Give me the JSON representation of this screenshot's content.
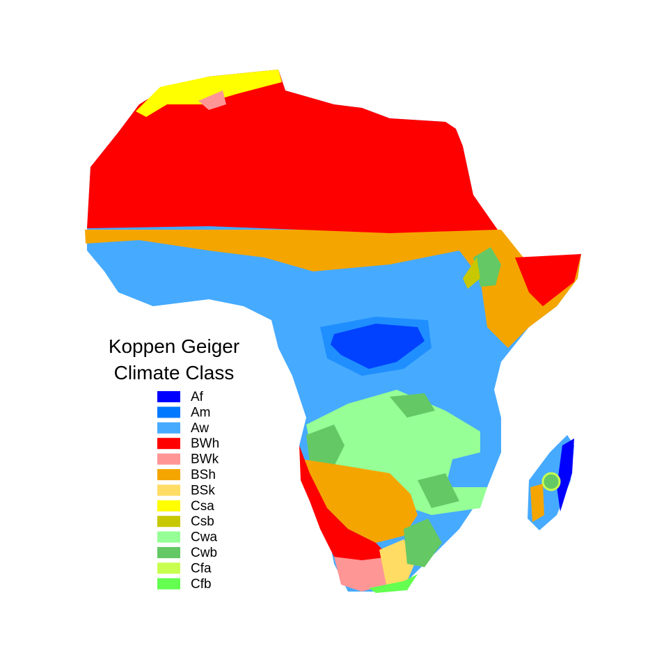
{
  "legend": {
    "title": [
      "Koppen Geiger",
      "Climate Class"
    ],
    "items": [
      {
        "name": "Af",
        "color": "#0000ff"
      },
      {
        "name": "Am",
        "color": "#0078ff"
      },
      {
        "name": "Aw",
        "color": "#46aaff"
      },
      {
        "name": "BWh",
        "color": "#ff0000"
      },
      {
        "name": "BWk",
        "color": "#ff9696"
      },
      {
        "name": "BSh",
        "color": "#f5a500"
      },
      {
        "name": "BSk",
        "color": "#ffdc64"
      },
      {
        "name": "Csa",
        "color": "#ffff00"
      },
      {
        "name": "Csb",
        "color": "#c8c800"
      },
      {
        "name": "Cwa",
        "color": "#96ff96"
      },
      {
        "name": "Cwb",
        "color": "#64c864"
      },
      {
        "name": "Cfa",
        "color": "#c8ff50"
      },
      {
        "name": "Cfb",
        "color": "#64ff50"
      }
    ]
  }
}
